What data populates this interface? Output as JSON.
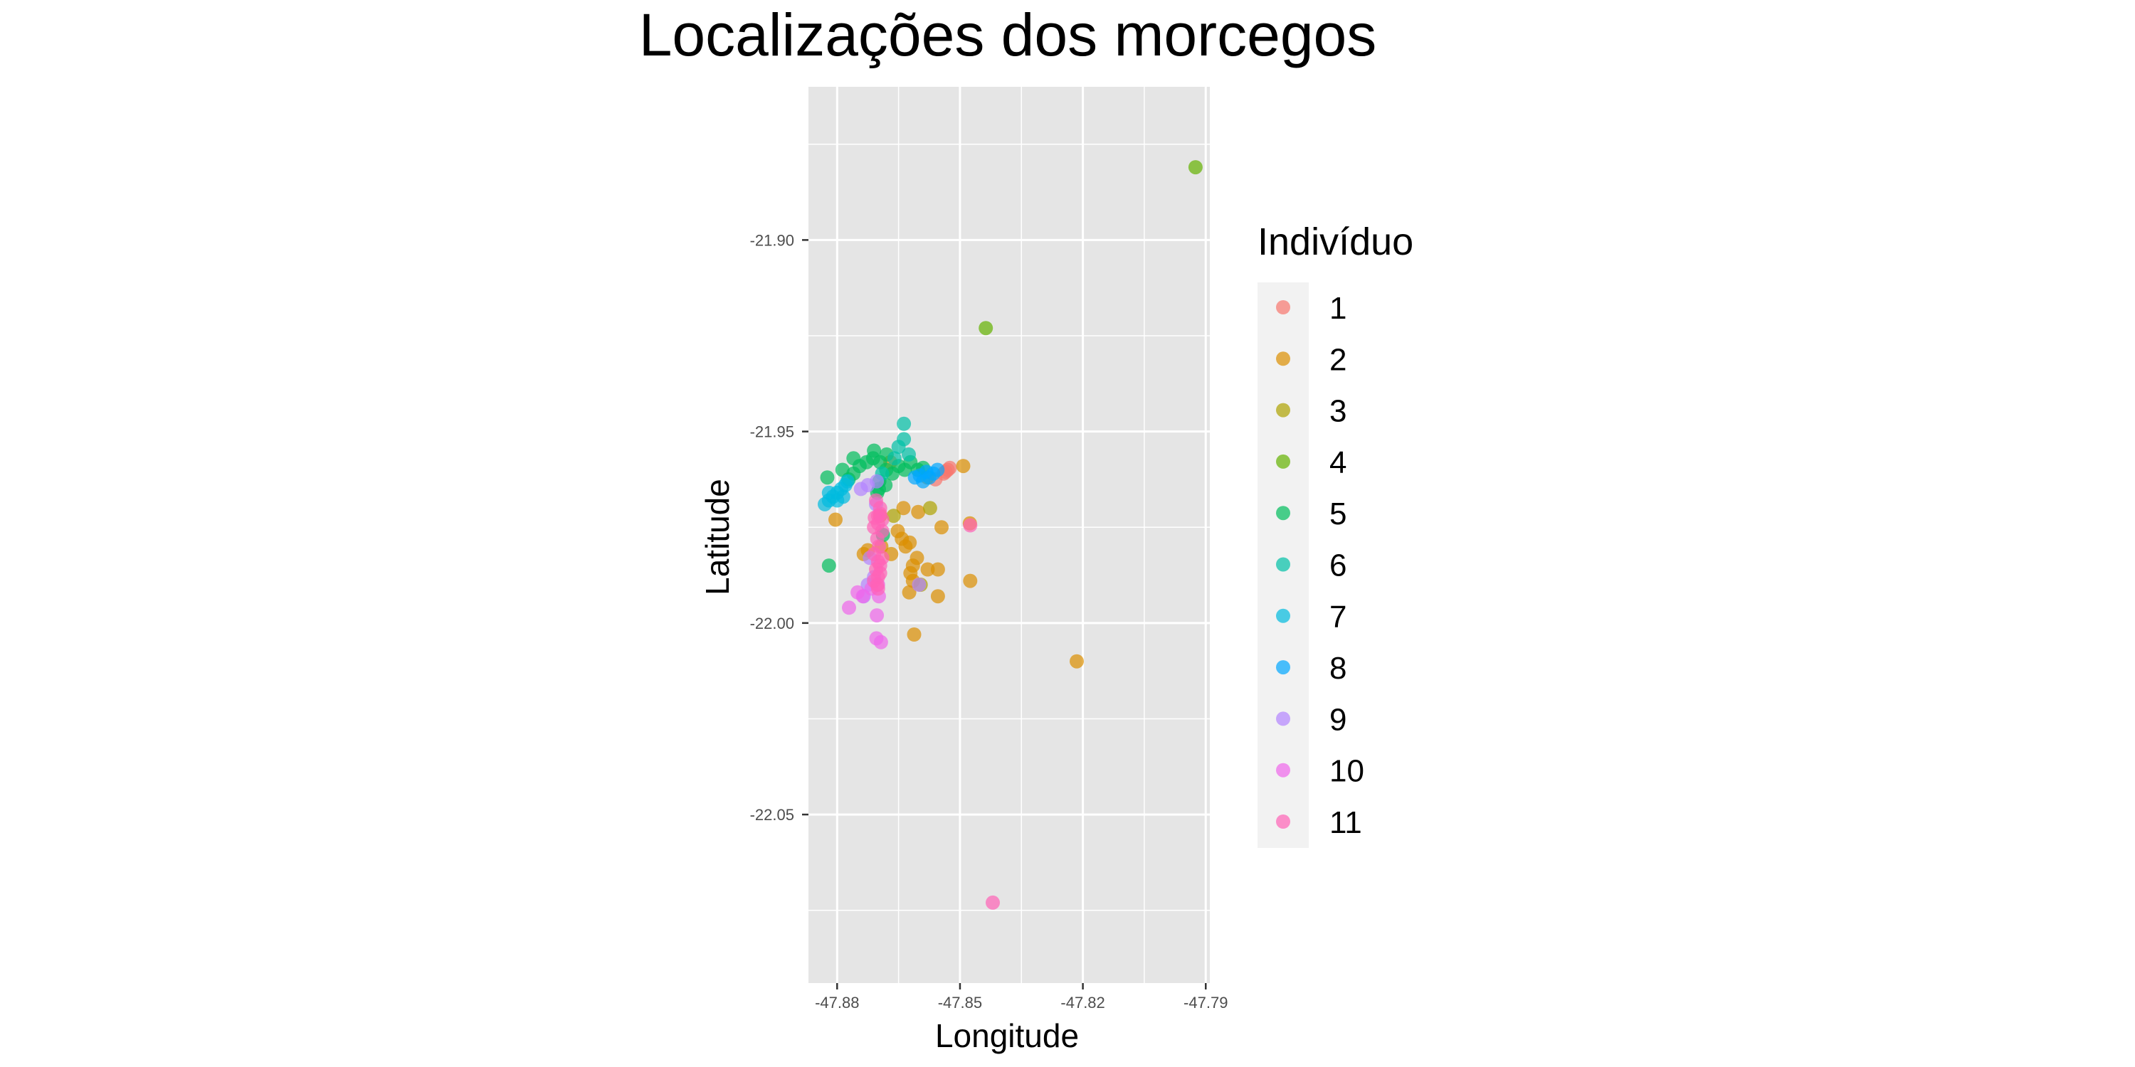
{
  "chart_data": {
    "type": "scatter",
    "title": "Localizações dos morcegos",
    "xlabel": "Longitude",
    "ylabel": "Latitude",
    "xlim": [
      -47.887,
      -47.789
    ],
    "ylim": [
      -22.094,
      -21.86
    ],
    "x_ticks": [
      -47.88,
      -47.85,
      -47.82,
      -47.79
    ],
    "x_tick_labels": [
      "-47.88",
      "-47.85",
      "-47.82",
      "-47.79"
    ],
    "y_ticks": [
      -21.9,
      -21.95,
      -22.0,
      -22.05
    ],
    "y_tick_labels": [
      "-21.90",
      "-21.95",
      "-22.00",
      "-22.05"
    ],
    "grid": true,
    "panel_background": "#e5e5e5",
    "legend": {
      "title": "Indivíduo",
      "position": "right"
    },
    "series": [
      {
        "name": "1",
        "color": "#F8766D",
        "points": [
          [
            -47.853,
            -21.96
          ],
          [
            -47.8535,
            -21.9605
          ],
          [
            -47.854,
            -21.961
          ],
          [
            -47.8525,
            -21.9595
          ],
          [
            -47.856,
            -21.9625
          ]
        ]
      },
      {
        "name": "2",
        "color": "#DB8E00",
        "points": [
          [
            -47.8492,
            -21.959
          ],
          [
            -47.858,
            -21.962
          ],
          [
            -47.867,
            -21.958
          ],
          [
            -47.8695,
            -21.972
          ],
          [
            -47.8638,
            -21.97
          ],
          [
            -47.8602,
            -21.971
          ],
          [
            -47.8545,
            -21.975
          ],
          [
            -47.8476,
            -21.974
          ],
          [
            -47.8475,
            -21.989
          ],
          [
            -47.8554,
            -21.986
          ],
          [
            -47.8579,
            -21.986
          ],
          [
            -47.8554,
            -21.993
          ],
          [
            -47.8615,
            -21.985
          ],
          [
            -47.8605,
            -21.983
          ],
          [
            -47.8623,
            -21.979
          ],
          [
            -47.8692,
            -21.98
          ],
          [
            -47.8725,
            -21.981
          ],
          [
            -47.8735,
            -21.982
          ],
          [
            -47.8668,
            -21.982
          ],
          [
            -47.8621,
            -21.987
          ],
          [
            -47.8615,
            -21.989
          ],
          [
            -47.8624,
            -21.992
          ],
          [
            -47.8652,
            -21.976
          ],
          [
            -47.8642,
            -21.978
          ],
          [
            -47.8612,
            -22.003
          ],
          [
            -47.8804,
            -21.973
          ],
          [
            -47.8633,
            -21.98
          ],
          [
            -47.8215,
            -22.01
          ]
        ]
      },
      {
        "name": "3",
        "color": "#AEA200",
        "points": [
          [
            -47.8573,
            -21.97
          ],
          [
            -47.8662,
            -21.972
          ],
          [
            -47.8596,
            -21.99
          ]
        ]
      },
      {
        "name": "4",
        "color": "#64B200",
        "points": [
          [
            -47.7925,
            -21.881
          ],
          [
            -47.8437,
            -21.923
          ]
        ]
      },
      {
        "name": "5",
        "color": "#00BD5C",
        "points": [
          [
            -47.8824,
            -21.962
          ],
          [
            -47.8787,
            -21.96
          ],
          [
            -47.8772,
            -21.9625
          ],
          [
            -47.876,
            -21.961
          ],
          [
            -47.8745,
            -21.959
          ],
          [
            -47.8728,
            -21.958
          ],
          [
            -47.8712,
            -21.957
          ],
          [
            -47.8695,
            -21.958
          ],
          [
            -47.868,
            -21.96
          ],
          [
            -47.8665,
            -21.961
          ],
          [
            -47.865,
            -21.959
          ],
          [
            -47.8635,
            -21.96
          ],
          [
            -47.8621,
            -21.958
          ],
          [
            -47.8603,
            -21.96
          ],
          [
            -47.859,
            -21.9595
          ],
          [
            -47.8697,
            -21.963
          ],
          [
            -47.8698,
            -21.965
          ],
          [
            -47.8682,
            -21.964
          ],
          [
            -47.871,
            -21.955
          ],
          [
            -47.8679,
            -21.956
          ],
          [
            -47.876,
            -21.957
          ],
          [
            -47.882,
            -21.985
          ],
          [
            -47.8702,
            -21.966
          ],
          [
            -47.8688,
            -21.977
          ]
        ]
      },
      {
        "name": "6",
        "color": "#00C1A7",
        "points": [
          [
            -47.8637,
            -21.948
          ],
          [
            -47.8637,
            -21.952
          ],
          [
            -47.8625,
            -21.956
          ],
          [
            -47.866,
            -21.957
          ],
          [
            -47.865,
            -21.954
          ],
          [
            -47.869,
            -21.961
          ]
        ]
      },
      {
        "name": "7",
        "color": "#00BADE",
        "points": [
          [
            -47.883,
            -21.969
          ],
          [
            -47.882,
            -21.968
          ],
          [
            -47.881,
            -21.967
          ],
          [
            -47.88,
            -21.966
          ],
          [
            -47.879,
            -21.965
          ],
          [
            -47.878,
            -21.964
          ],
          [
            -47.8775,
            -21.963
          ],
          [
            -47.882,
            -21.966
          ],
          [
            -47.88,
            -21.968
          ],
          [
            -47.8785,
            -21.967
          ]
        ]
      },
      {
        "name": "8",
        "color": "#00A6FF",
        "points": [
          [
            -47.861,
            -21.962
          ],
          [
            -47.859,
            -21.963
          ],
          [
            -47.8575,
            -21.962
          ],
          [
            -47.8565,
            -21.961
          ],
          [
            -47.8555,
            -21.96
          ],
          [
            -47.8582,
            -21.9605
          ],
          [
            -47.8598,
            -21.9615
          ]
        ]
      },
      {
        "name": "9",
        "color": "#B385FF",
        "points": [
          [
            -47.8742,
            -21.965
          ],
          [
            -47.8725,
            -21.964
          ],
          [
            -47.8703,
            -21.963
          ],
          [
            -47.8705,
            -21.969
          ],
          [
            -47.8735,
            -21.993
          ],
          [
            -47.8725,
            -21.99
          ],
          [
            -47.871,
            -21.988
          ],
          [
            -47.86,
            -21.99
          ],
          [
            -47.872,
            -21.983
          ]
        ]
      },
      {
        "name": "10",
        "color": "#EF67EB",
        "points": [
          [
            -47.875,
            -21.992
          ],
          [
            -47.8737,
            -21.993
          ],
          [
            -47.8771,
            -21.996
          ],
          [
            -47.8703,
            -21.998
          ],
          [
            -47.8704,
            -22.004
          ],
          [
            -47.8693,
            -22.005
          ],
          [
            -47.8698,
            -21.993
          ],
          [
            -47.87,
            -21.99
          ],
          [
            -47.8716,
            -21.991
          ]
        ]
      },
      {
        "name": "11",
        "color": "#FF63B6",
        "points": [
          [
            -47.8705,
            -21.968
          ],
          [
            -47.8695,
            -21.97
          ],
          [
            -47.87,
            -21.972
          ],
          [
            -47.869,
            -21.973
          ],
          [
            -47.87,
            -21.974
          ],
          [
            -47.871,
            -21.975
          ],
          [
            -47.869,
            -21.976
          ],
          [
            -47.8702,
            -21.978
          ],
          [
            -47.8698,
            -21.98
          ],
          [
            -47.871,
            -21.982
          ],
          [
            -47.87,
            -21.984
          ],
          [
            -47.8695,
            -21.985
          ],
          [
            -47.8705,
            -21.986
          ],
          [
            -47.87,
            -21.988
          ],
          [
            -47.871,
            -21.989
          ],
          [
            -47.8702,
            -21.99
          ],
          [
            -47.87,
            -21.991
          ],
          [
            -47.8695,
            -21.987
          ],
          [
            -47.869,
            -21.983
          ],
          [
            -47.8475,
            -21.9745
          ],
          [
            -47.842,
            -22.073
          ],
          [
            -47.8695,
            -21.9715
          ],
          [
            -47.8708,
            -21.9725
          ]
        ]
      }
    ]
  }
}
